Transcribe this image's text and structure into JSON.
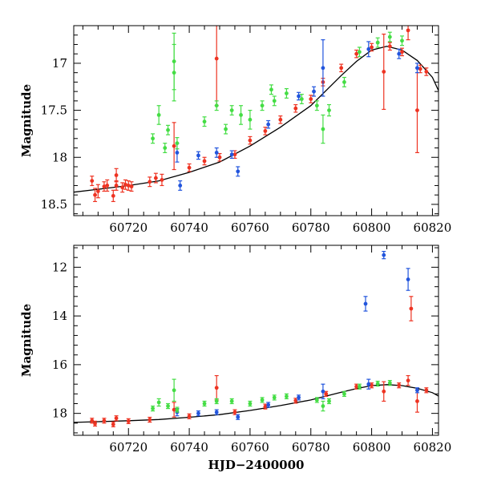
{
  "chart_data": [
    {
      "type": "scatter",
      "panel": "top",
      "xlabel": "",
      "ylabel": "Magnitude",
      "xlim": [
        60702,
        60822
      ],
      "ylim": [
        18.62,
        16.6
      ],
      "y_inverted": true,
      "x_ticks": [
        60720,
        60740,
        60760,
        60780,
        60800,
        60820
      ],
      "y_ticks": [
        17,
        17.5,
        18,
        18.5
      ],
      "x_tick_labels": [
        "60720",
        "60740",
        "60760",
        "60780",
        "60800",
        "60820"
      ],
      "y_tick_labels": [
        "17",
        "17.5",
        "18",
        "18.5"
      ],
      "model_curve": {
        "color": "#000000",
        "x": [
          60702,
          60710,
          60720,
          60730,
          60740,
          60750,
          60760,
          60770,
          60780,
          60790,
          60795,
          60800,
          60805,
          60810,
          60815,
          60820,
          60822
        ],
        "y": [
          18.37,
          18.34,
          18.3,
          18.25,
          18.16,
          18.05,
          17.88,
          17.68,
          17.45,
          17.13,
          16.98,
          16.86,
          16.82,
          16.86,
          16.97,
          17.15,
          17.29
        ]
      },
      "series": [
        {
          "color": "#ee3322",
          "points": [
            [
              60708,
              18.25,
              0.05
            ],
            [
              60709,
              18.4,
              0.07
            ],
            [
              60710,
              18.36,
              0.07
            ],
            [
              60712,
              18.31,
              0.05
            ],
            [
              60713,
              18.3,
              0.06
            ],
            [
              60715,
              18.41,
              0.06
            ],
            [
              60716,
              18.19,
              0.07
            ],
            [
              60716,
              18.3,
              0.05
            ],
            [
              60718,
              18.32,
              0.05
            ],
            [
              60719,
              18.29,
              0.05
            ],
            [
              60720,
              18.3,
              0.05
            ],
            [
              60721,
              18.31,
              0.05
            ],
            [
              60727,
              18.26,
              0.05
            ],
            [
              60729,
              18.22,
              0.05
            ],
            [
              60731,
              18.24,
              0.06
            ],
            [
              60735,
              17.88,
              0.25
            ],
            [
              60740,
              18.11,
              0.04
            ],
            [
              60745,
              18.04,
              0.04
            ],
            [
              60749,
              16.95,
              0.5
            ],
            [
              60750,
              18.0,
              0.04
            ],
            [
              60755,
              17.97,
              0.04
            ],
            [
              60760,
              17.82,
              0.04
            ],
            [
              60765,
              17.72,
              0.04
            ],
            [
              60770,
              17.6,
              0.04
            ],
            [
              60775,
              17.48,
              0.04
            ],
            [
              60780,
              17.38,
              0.04
            ],
            [
              60784,
              17.2,
              0.04
            ],
            [
              60790,
              17.05,
              0.04
            ],
            [
              60795,
              16.9,
              0.04
            ],
            [
              60800,
              16.83,
              0.04
            ],
            [
              60804,
              17.09,
              0.4
            ],
            [
              60806,
              16.82,
              0.04
            ],
            [
              60810,
              16.88,
              0.04
            ],
            [
              60812,
              16.65,
              0.1
            ],
            [
              60815,
              17.5,
              0.45
            ],
            [
              60816,
              17.06,
              0.04
            ],
            [
              60818,
              17.09,
              0.04
            ]
          ]
        },
        {
          "color": "#2255dd",
          "points": [
            [
              60736,
              17.95,
              0.1
            ],
            [
              60737,
              18.3,
              0.05
            ],
            [
              60743,
              17.98,
              0.04
            ],
            [
              60749,
              17.95,
              0.05
            ],
            [
              60754,
              17.97,
              0.04
            ],
            [
              60756,
              18.15,
              0.05
            ],
            [
              60766,
              17.65,
              0.04
            ],
            [
              60776,
              17.35,
              0.04
            ],
            [
              60781,
              17.3,
              0.05
            ],
            [
              60784,
              17.05,
              0.3
            ],
            [
              60799,
              16.85,
              0.08
            ],
            [
              60809,
              16.9,
              0.05
            ],
            [
              60815,
              17.05,
              0.05
            ]
          ]
        },
        {
          "color": "#44dd44",
          "points": [
            [
              60728,
              17.8,
              0.05
            ],
            [
              60730,
              17.55,
              0.1
            ],
            [
              60732,
              17.9,
              0.05
            ],
            [
              60733,
              17.71,
              0.05
            ],
            [
              60735,
              17.1,
              0.3
            ],
            [
              60735,
              16.98,
              0.3
            ],
            [
              60736,
              17.85,
              0.06
            ],
            [
              60745,
              17.62,
              0.05
            ],
            [
              60749,
              17.45,
              0.05
            ],
            [
              60752,
              17.7,
              0.05
            ],
            [
              60754,
              17.5,
              0.05
            ],
            [
              60757,
              17.55,
              0.1
            ],
            [
              60760,
              17.6,
              0.1
            ],
            [
              60764,
              17.45,
              0.05
            ],
            [
              60767,
              17.28,
              0.05
            ],
            [
              60768,
              17.4,
              0.05
            ],
            [
              60772,
              17.32,
              0.05
            ],
            [
              60777,
              17.38,
              0.05
            ],
            [
              60782,
              17.45,
              0.05
            ],
            [
              60784,
              17.7,
              0.15
            ],
            [
              60786,
              17.5,
              0.06
            ],
            [
              60791,
              17.2,
              0.05
            ],
            [
              60796,
              16.88,
              0.05
            ],
            [
              60802,
              16.78,
              0.05
            ],
            [
              60806,
              16.72,
              0.05
            ],
            [
              60810,
              16.76,
              0.05
            ]
          ]
        }
      ]
    },
    {
      "type": "scatter",
      "panel": "bottom",
      "xlabel": "HJD−2400000",
      "ylabel": "Magnitude",
      "xlim": [
        60702,
        60822
      ],
      "ylim": [
        18.9,
        11.1
      ],
      "y_inverted": true,
      "x_ticks": [
        60720,
        60740,
        60760,
        60780,
        60800,
        60820
      ],
      "y_ticks": [
        12,
        14,
        16,
        18
      ],
      "x_tick_labels": [
        "60720",
        "60740",
        "60760",
        "60780",
        "60800",
        "60820"
      ],
      "y_tick_labels": [
        "12",
        "14",
        "16",
        "18"
      ],
      "model_curve": {
        "color": "#000000",
        "x": [
          60702,
          60710,
          60720,
          60730,
          60740,
          60750,
          60760,
          60770,
          60780,
          60790,
          60795,
          60800,
          60805,
          60810,
          60815,
          60820,
          60822
        ],
        "y": [
          18.37,
          18.34,
          18.3,
          18.25,
          18.16,
          18.05,
          17.88,
          17.68,
          17.45,
          17.13,
          16.98,
          16.86,
          16.82,
          16.86,
          16.97,
          17.15,
          17.29
        ]
      },
      "series": [
        {
          "color": "#ee3322",
          "points": [
            [
              60708,
              18.3,
              0.1
            ],
            [
              60709,
              18.42,
              0.1
            ],
            [
              60712,
              18.3,
              0.1
            ],
            [
              60715,
              18.45,
              0.1
            ],
            [
              60716,
              18.2,
              0.1
            ],
            [
              60720,
              18.32,
              0.1
            ],
            [
              60727,
              18.26,
              0.1
            ],
            [
              60735,
              17.85,
              0.3
            ],
            [
              60740,
              18.12,
              0.1
            ],
            [
              60749,
              16.95,
              0.5
            ],
            [
              60755,
              17.95,
              0.1
            ],
            [
              60765,
              17.72,
              0.1
            ],
            [
              60775,
              17.48,
              0.1
            ],
            [
              60785,
              17.2,
              0.1
            ],
            [
              60795,
              16.9,
              0.1
            ],
            [
              60800,
              16.85,
              0.1
            ],
            [
              60804,
              17.1,
              0.4
            ],
            [
              60809,
              16.85,
              0.1
            ],
            [
              60812,
              16.65,
              0.2
            ],
            [
              60813,
              13.7,
              0.5
            ],
            [
              60815,
              17.5,
              0.45
            ],
            [
              60818,
              17.05,
              0.1
            ]
          ]
        },
        {
          "color": "#2255dd",
          "points": [
            [
              60736,
              17.95,
              0.15
            ],
            [
              60743,
              18.0,
              0.1
            ],
            [
              60749,
              17.95,
              0.1
            ],
            [
              60756,
              18.15,
              0.1
            ],
            [
              60766,
              17.65,
              0.1
            ],
            [
              60776,
              17.35,
              0.1
            ],
            [
              60784,
              17.1,
              0.3
            ],
            [
              60798,
              13.5,
              0.3
            ],
            [
              60799,
              16.8,
              0.2
            ],
            [
              60804,
              11.5,
              0.15
            ],
            [
              60812,
              12.5,
              0.45
            ],
            [
              60815,
              17.05,
              0.1
            ]
          ]
        },
        {
          "color": "#44dd44",
          "points": [
            [
              60728,
              17.8,
              0.1
            ],
            [
              60730,
              17.55,
              0.15
            ],
            [
              60733,
              17.7,
              0.1
            ],
            [
              60735,
              17.05,
              0.45
            ],
            [
              60736,
              17.85,
              0.1
            ],
            [
              60745,
              17.6,
              0.1
            ],
            [
              60749,
              17.5,
              0.1
            ],
            [
              60754,
              17.5,
              0.1
            ],
            [
              60760,
              17.6,
              0.1
            ],
            [
              60764,
              17.45,
              0.1
            ],
            [
              60768,
              17.35,
              0.1
            ],
            [
              60772,
              17.3,
              0.1
            ],
            [
              60782,
              17.45,
              0.1
            ],
            [
              60784,
              17.7,
              0.2
            ],
            [
              60786,
              17.5,
              0.1
            ],
            [
              60791,
              17.2,
              0.1
            ],
            [
              60796,
              16.9,
              0.1
            ],
            [
              60802,
              16.78,
              0.1
            ],
            [
              60806,
              16.75,
              0.1
            ]
          ]
        }
      ]
    }
  ]
}
